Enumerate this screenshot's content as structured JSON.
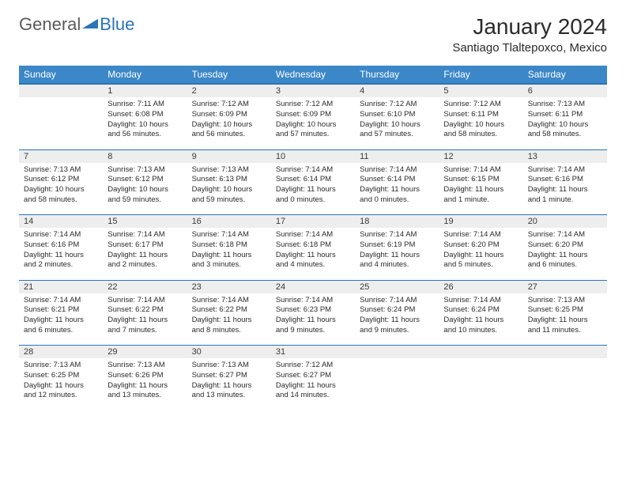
{
  "logo": {
    "general": "General",
    "blue": "Blue"
  },
  "header": {
    "month_title": "January 2024",
    "location": "Santiago Tlaltepoxco, Mexico"
  },
  "colors": {
    "header_bg": "#3b87c8",
    "header_border": "#2a74b8",
    "daynum_bg": "#eeeeee",
    "text": "#2b2b2b"
  },
  "weekdays": [
    "Sunday",
    "Monday",
    "Tuesday",
    "Wednesday",
    "Thursday",
    "Friday",
    "Saturday"
  ],
  "weeks": [
    [
      null,
      {
        "n": "1",
        "sr": "7:11 AM",
        "ss": "6:08 PM",
        "dl": "10 hours and 56 minutes."
      },
      {
        "n": "2",
        "sr": "7:12 AM",
        "ss": "6:09 PM",
        "dl": "10 hours and 56 minutes."
      },
      {
        "n": "3",
        "sr": "7:12 AM",
        "ss": "6:09 PM",
        "dl": "10 hours and 57 minutes."
      },
      {
        "n": "4",
        "sr": "7:12 AM",
        "ss": "6:10 PM",
        "dl": "10 hours and 57 minutes."
      },
      {
        "n": "5",
        "sr": "7:12 AM",
        "ss": "6:11 PM",
        "dl": "10 hours and 58 minutes."
      },
      {
        "n": "6",
        "sr": "7:13 AM",
        "ss": "6:11 PM",
        "dl": "10 hours and 58 minutes."
      }
    ],
    [
      {
        "n": "7",
        "sr": "7:13 AM",
        "ss": "6:12 PM",
        "dl": "10 hours and 58 minutes."
      },
      {
        "n": "8",
        "sr": "7:13 AM",
        "ss": "6:12 PM",
        "dl": "10 hours and 59 minutes."
      },
      {
        "n": "9",
        "sr": "7:13 AM",
        "ss": "6:13 PM",
        "dl": "10 hours and 59 minutes."
      },
      {
        "n": "10",
        "sr": "7:14 AM",
        "ss": "6:14 PM",
        "dl": "11 hours and 0 minutes."
      },
      {
        "n": "11",
        "sr": "7:14 AM",
        "ss": "6:14 PM",
        "dl": "11 hours and 0 minutes."
      },
      {
        "n": "12",
        "sr": "7:14 AM",
        "ss": "6:15 PM",
        "dl": "11 hours and 1 minute."
      },
      {
        "n": "13",
        "sr": "7:14 AM",
        "ss": "6:16 PM",
        "dl": "11 hours and 1 minute."
      }
    ],
    [
      {
        "n": "14",
        "sr": "7:14 AM",
        "ss": "6:16 PM",
        "dl": "11 hours and 2 minutes."
      },
      {
        "n": "15",
        "sr": "7:14 AM",
        "ss": "6:17 PM",
        "dl": "11 hours and 2 minutes."
      },
      {
        "n": "16",
        "sr": "7:14 AM",
        "ss": "6:18 PM",
        "dl": "11 hours and 3 minutes."
      },
      {
        "n": "17",
        "sr": "7:14 AM",
        "ss": "6:18 PM",
        "dl": "11 hours and 4 minutes."
      },
      {
        "n": "18",
        "sr": "7:14 AM",
        "ss": "6:19 PM",
        "dl": "11 hours and 4 minutes."
      },
      {
        "n": "19",
        "sr": "7:14 AM",
        "ss": "6:20 PM",
        "dl": "11 hours and 5 minutes."
      },
      {
        "n": "20",
        "sr": "7:14 AM",
        "ss": "6:20 PM",
        "dl": "11 hours and 6 minutes."
      }
    ],
    [
      {
        "n": "21",
        "sr": "7:14 AM",
        "ss": "6:21 PM",
        "dl": "11 hours and 6 minutes."
      },
      {
        "n": "22",
        "sr": "7:14 AM",
        "ss": "6:22 PM",
        "dl": "11 hours and 7 minutes."
      },
      {
        "n": "23",
        "sr": "7:14 AM",
        "ss": "6:22 PM",
        "dl": "11 hours and 8 minutes."
      },
      {
        "n": "24",
        "sr": "7:14 AM",
        "ss": "6:23 PM",
        "dl": "11 hours and 9 minutes."
      },
      {
        "n": "25",
        "sr": "7:14 AM",
        "ss": "6:24 PM",
        "dl": "11 hours and 9 minutes."
      },
      {
        "n": "26",
        "sr": "7:14 AM",
        "ss": "6:24 PM",
        "dl": "11 hours and 10 minutes."
      },
      {
        "n": "27",
        "sr": "7:13 AM",
        "ss": "6:25 PM",
        "dl": "11 hours and 11 minutes."
      }
    ],
    [
      {
        "n": "28",
        "sr": "7:13 AM",
        "ss": "6:25 PM",
        "dl": "11 hours and 12 minutes."
      },
      {
        "n": "29",
        "sr": "7:13 AM",
        "ss": "6:26 PM",
        "dl": "11 hours and 13 minutes."
      },
      {
        "n": "30",
        "sr": "7:13 AM",
        "ss": "6:27 PM",
        "dl": "11 hours and 13 minutes."
      },
      {
        "n": "31",
        "sr": "7:12 AM",
        "ss": "6:27 PM",
        "dl": "11 hours and 14 minutes."
      },
      null,
      null,
      null
    ]
  ],
  "labels": {
    "sunrise": "Sunrise: ",
    "sunset": "Sunset: ",
    "daylight": "Daylight: "
  }
}
